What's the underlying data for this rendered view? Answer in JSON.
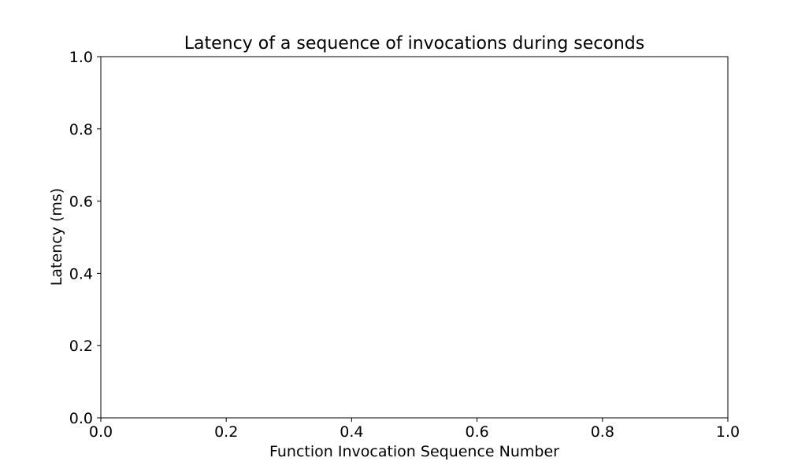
{
  "chart_data": {
    "type": "line",
    "title": "Latency of a sequence of invocations during  seconds",
    "xlabel": "Function Invocation Sequence Number",
    "ylabel": "Latency (ms)",
    "xlim": [
      0.0,
      1.0
    ],
    "ylim": [
      0.0,
      1.0
    ],
    "xticks": [
      "0.0",
      "0.2",
      "0.4",
      "0.6",
      "0.8",
      "1.0"
    ],
    "yticks": [
      "0.0",
      "0.2",
      "0.4",
      "0.6",
      "0.8",
      "1.0"
    ],
    "grid": false,
    "series": []
  }
}
